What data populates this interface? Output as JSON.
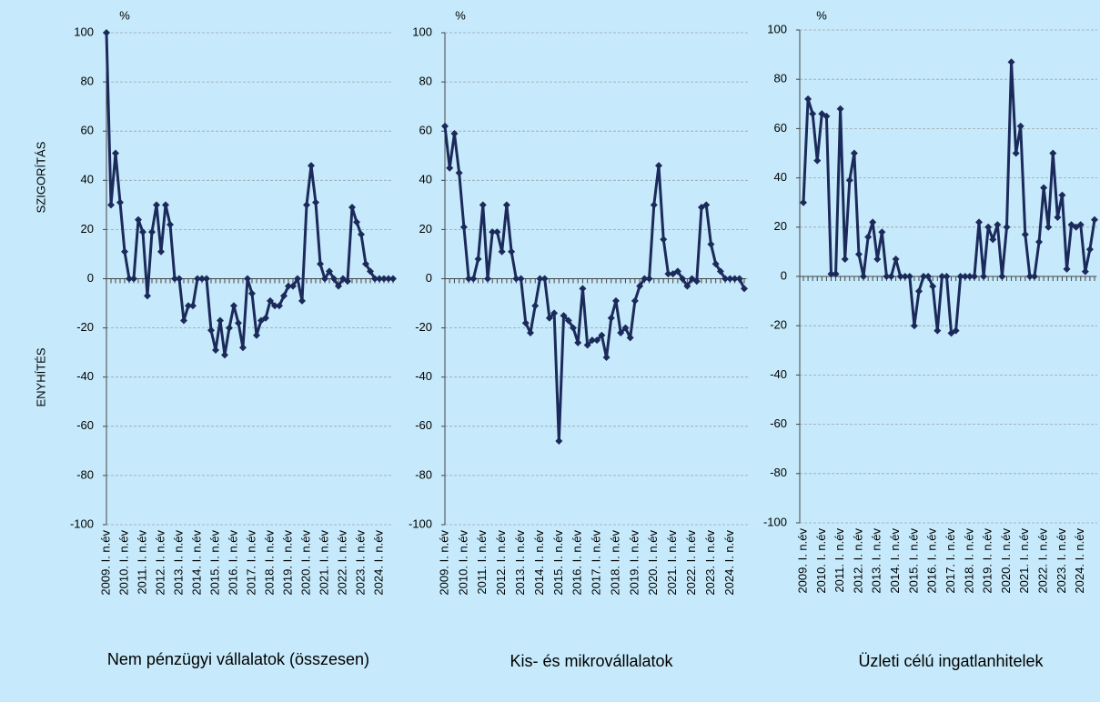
{
  "chart_data": [
    {
      "type": "line",
      "title": "Nem pénzügyi vállalatok (összesen)",
      "unit_label": "%",
      "annotations": [
        "SZIGORÍTÁS",
        "ENYHÍTÉS"
      ],
      "categories": [
        "2009. I. n.év",
        null,
        null,
        null,
        "2010. I. n.év",
        null,
        null,
        null,
        "2011. I. n.év",
        null,
        null,
        null,
        "2012. I. n.év",
        null,
        null,
        null,
        "2013. I. n.év",
        null,
        null,
        null,
        "2014. I. n.év",
        null,
        null,
        null,
        "2015. I. n.év",
        null,
        null,
        null,
        "2016. I. n.év",
        null,
        null,
        null,
        "2017. I. n.év",
        null,
        null,
        null,
        "2018. I. n.év",
        null,
        null,
        null,
        "2019. I. n.év",
        null,
        null,
        null,
        "2020. I. n.év",
        null,
        null,
        null,
        "2021. I. n.év",
        null,
        null,
        null,
        "2022. I. n.év",
        null,
        null,
        null,
        "2023. I. n.év",
        null,
        null,
        null,
        "2024. I. n.év",
        null,
        null,
        null
      ],
      "series": [
        {
          "color": "#1b2a5a",
          "values": [
            100,
            30,
            51,
            31,
            11,
            0,
            0,
            24,
            19,
            -7,
            19,
            30,
            11,
            30,
            22,
            0,
            0,
            -17,
            -11,
            -11,
            0,
            0,
            0,
            -21,
            -29,
            -17,
            -31,
            -20,
            -11,
            -18,
            -28,
            0,
            -6,
            -23,
            -17,
            -16,
            -9,
            -11,
            -11,
            -7,
            -3,
            -3,
            0,
            -9,
            30,
            46,
            31,
            6,
            0,
            3,
            0,
            -3,
            0,
            -1,
            29,
            23,
            18,
            6,
            3,
            0,
            0,
            0,
            0,
            0
          ]
        }
      ],
      "ylim": [
        -100,
        100
      ],
      "yticks": [
        -100,
        -80,
        -60,
        -40,
        -20,
        0,
        20,
        40,
        60,
        80,
        100
      ],
      "grid": true
    },
    {
      "type": "line",
      "title": "Kis- és mikrovállalatok",
      "unit_label": "%",
      "categories": [
        "2009. I. n.év",
        null,
        null,
        null,
        "2010. I. n.év",
        null,
        null,
        null,
        "2011. I. n.év",
        null,
        null,
        null,
        "2012. I. n.év",
        null,
        null,
        null,
        "2013. I. n.év",
        null,
        null,
        null,
        "2014. I. n.év",
        null,
        null,
        null,
        "2015. I. n.év",
        null,
        null,
        null,
        "2016. I. n.év",
        null,
        null,
        null,
        "2017. I. n.év",
        null,
        null,
        null,
        "2018. I. n.év",
        null,
        null,
        null,
        "2019. I. n.év",
        null,
        null,
        null,
        "2020. I. n.év",
        null,
        null,
        null,
        "2021. I. n.év",
        null,
        null,
        null,
        "2022. I. n.év",
        null,
        null,
        null,
        "2023. I. n.év",
        null,
        null,
        null,
        "2024. I. n.év",
        null,
        null,
        null
      ],
      "series": [
        {
          "color": "#1b2a5a",
          "values": [
            62,
            45,
            59,
            43,
            21,
            0,
            0,
            8,
            30,
            0,
            19,
            19,
            11,
            30,
            11,
            0,
            0,
            -18,
            -22,
            -11,
            0,
            0,
            -16,
            -14,
            -66,
            -15,
            -17,
            -20,
            -26,
            -4,
            -27,
            -25,
            -25,
            -23,
            -32,
            -16,
            -9,
            -22,
            -20,
            -24,
            -9,
            -3,
            0,
            0,
            30,
            46,
            16,
            2,
            2,
            3,
            0,
            -3,
            0,
            -1,
            29,
            30,
            14,
            6,
            3,
            0,
            0,
            0,
            0,
            -4
          ]
        }
      ],
      "ylim": [
        -100,
        100
      ],
      "yticks": [
        -100,
        -80,
        -60,
        -40,
        -20,
        0,
        20,
        40,
        60,
        80,
        100
      ],
      "grid": true
    },
    {
      "type": "line",
      "title": "Üzleti célú ingatlanhitelek",
      "unit_label": "%",
      "categories": [
        "2009. I. n.év",
        null,
        null,
        null,
        "2010. I. n.év",
        null,
        null,
        null,
        "2011. I. n.év",
        null,
        null,
        null,
        "2012. I. n.év",
        null,
        null,
        null,
        "2013. I. n.év",
        null,
        null,
        null,
        "2014. I. n.év",
        null,
        null,
        null,
        "2015. I. n.év",
        null,
        null,
        null,
        "2016. I. n.év",
        null,
        null,
        null,
        "2017. I. n.év",
        null,
        null,
        null,
        "2018. I. n.év",
        null,
        null,
        null,
        "2019. I. n.év",
        null,
        null,
        null,
        "2020. I. n.év",
        null,
        null,
        null,
        "2021. I. n.év",
        null,
        null,
        null,
        "2022. I. n.év",
        null,
        null,
        null,
        "2023. I. n.év",
        null,
        null,
        null,
        "2024. I. n.év",
        null,
        null,
        null
      ],
      "series": [
        {
          "color": "#1b2a5a",
          "values": [
            30,
            72,
            66,
            47,
            66,
            65,
            1,
            1,
            68,
            7,
            39,
            50,
            9,
            0,
            16,
            22,
            7,
            18,
            0,
            0,
            7,
            0,
            0,
            0,
            -20,
            -6,
            0,
            0,
            -4,
            -22,
            0,
            0,
            -23,
            -22,
            0,
            0,
            0,
            0,
            22,
            0,
            20,
            15,
            21,
            0,
            20,
            87,
            50,
            61,
            17,
            0,
            0,
            14,
            36,
            20,
            50,
            24,
            33,
            3,
            21,
            20,
            21,
            2,
            11,
            23
          ]
        }
      ],
      "ylim": [
        -100,
        100
      ],
      "yticks": [
        -100,
        -80,
        -60,
        -40,
        -20,
        0,
        20,
        40,
        60,
        80,
        100
      ],
      "grid": true
    }
  ]
}
